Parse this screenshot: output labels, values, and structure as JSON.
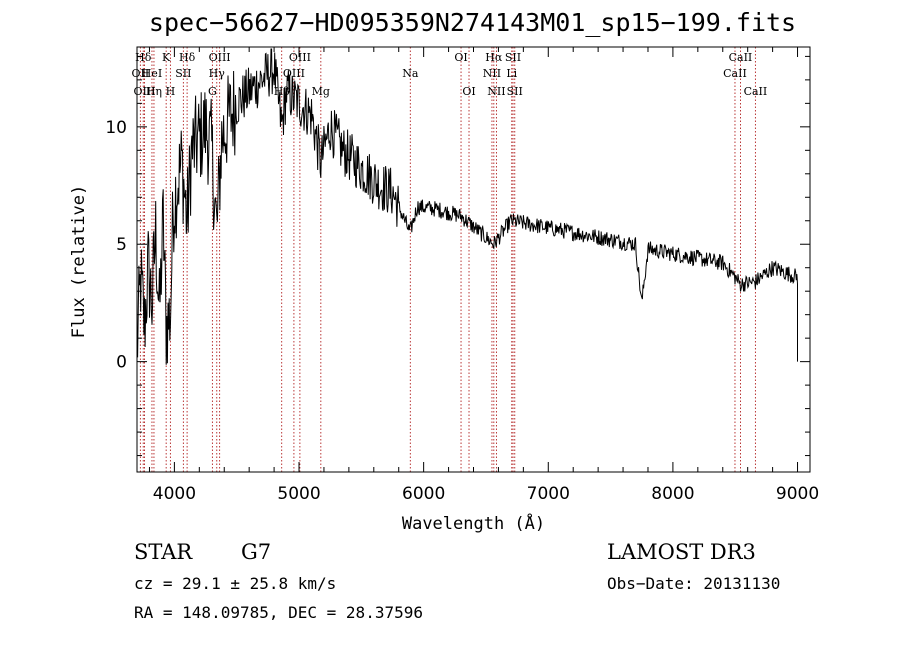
{
  "header": {
    "title": "spec−56627−HD095359N274143M01_sp15−199.fits"
  },
  "info": {
    "object_class": "STAR",
    "subclass": "G7",
    "survey": "LAMOST DR3",
    "redshift_text": "cz = 29.1 ± 25.8 km/s",
    "obs_date_text": "Obs−Date: 20131130",
    "coords_text": "RA = 148.09785, DEC =  28.37596"
  },
  "chart_data": {
    "type": "line",
    "title": "spec−56627−HD095359N274143M01_sp15−199.fits",
    "xlabel": "Wavelength (Å)",
    "ylabel": "Flux (relative)",
    "xlim": [
      3700,
      9100
    ],
    "ylim": [
      -4.7,
      13.4
    ],
    "xticks": [
      4000,
      5000,
      6000,
      7000,
      8000,
      9000
    ],
    "yticks": [
      0,
      5,
      10
    ],
    "x_minor_step": 200,
    "y_minor_step": 1,
    "grid": false,
    "series": [
      {
        "name": "Flux",
        "anchors": [
          [
            3700,
            0.5
          ],
          [
            3730,
            3.5
          ],
          [
            3760,
            1.5
          ],
          [
            3790,
            4.0
          ],
          [
            3820,
            2.5
          ],
          [
            3850,
            5.5
          ],
          [
            3880,
            2.0
          ],
          [
            3910,
            6.0
          ],
          [
            3934,
            1.5
          ],
          [
            3968,
            2.0
          ],
          [
            3990,
            6.5
          ],
          [
            4020,
            7.5
          ],
          [
            4060,
            8.5
          ],
          [
            4101,
            6.0
          ],
          [
            4140,
            9.0
          ],
          [
            4200,
            9.5
          ],
          [
            4250,
            10.0
          ],
          [
            4300,
            9.0
          ],
          [
            4340,
            5.5
          ],
          [
            4380,
            9.5
          ],
          [
            4450,
            10.5
          ],
          [
            4500,
            11.0
          ],
          [
            4600,
            11.5
          ],
          [
            4700,
            12.0
          ],
          [
            4800,
            12.5
          ],
          [
            4861,
            10.0
          ],
          [
            4900,
            11.5
          ],
          [
            5000,
            11.0
          ],
          [
            5100,
            10.5
          ],
          [
            5175,
            8.5
          ],
          [
            5250,
            10.0
          ],
          [
            5350,
            9.0
          ],
          [
            5450,
            8.5
          ],
          [
            5550,
            8.0
          ],
          [
            5650,
            7.5
          ],
          [
            5750,
            7.2
          ],
          [
            5890,
            5.5
          ],
          [
            5950,
            6.6
          ],
          [
            6100,
            6.5
          ],
          [
            6300,
            6.2
          ],
          [
            6563,
            5.0
          ],
          [
            6700,
            6.0
          ],
          [
            6900,
            5.8
          ],
          [
            7100,
            5.6
          ],
          [
            7300,
            5.4
          ],
          [
            7500,
            5.2
          ],
          [
            7700,
            5.0
          ],
          [
            7750,
            2.5
          ],
          [
            7800,
            4.8
          ],
          [
            8000,
            4.6
          ],
          [
            8200,
            4.4
          ],
          [
            8400,
            4.2
          ],
          [
            8498,
            3.6
          ],
          [
            8542,
            3.3
          ],
          [
            8662,
            3.4
          ],
          [
            8800,
            4.0
          ],
          [
            9000,
            3.6
          ],
          [
            9000,
            0.0
          ]
        ]
      }
    ],
    "spectral_lines": [
      {
        "name": "Hδ",
        "wavelength": 3750,
        "row": 1
      },
      {
        "name": "OII",
        "wavelength": 3727,
        "row": 2
      },
      {
        "name": "OIII",
        "wavelength": 3760,
        "row": 3
      },
      {
        "name": "Hη",
        "wavelength": 3836,
        "row": 3
      },
      {
        "name": "HeI",
        "wavelength": 3820,
        "row": 2
      },
      {
        "name": "K",
        "wavelength": 3934,
        "row": 1
      },
      {
        "name": "H",
        "wavelength": 3968,
        "row": 3
      },
      {
        "name": "SII",
        "wavelength": 4072,
        "row": 2
      },
      {
        "name": "Hδ",
        "wavelength": 4102,
        "row": 1
      },
      {
        "name": "OIII",
        "wavelength": 4363,
        "row": 1
      },
      {
        "name": "Hγ",
        "wavelength": 4340,
        "row": 2
      },
      {
        "name": "G",
        "wavelength": 4305,
        "row": 3
      },
      {
        "name": "OIII",
        "wavelength": 5007,
        "row": 1
      },
      {
        "name": "OIII",
        "wavelength": 4959,
        "row": 2
      },
      {
        "name": "Hβ",
        "wavelength": 4861,
        "row": 3
      },
      {
        "name": "Mg",
        "wavelength": 5175,
        "row": 3
      },
      {
        "name": "Na",
        "wavelength": 5893,
        "row": 2
      },
      {
        "name": "OI",
        "wavelength": 6300,
        "row": 1
      },
      {
        "name": "OI",
        "wavelength": 6364,
        "row": 3
      },
      {
        "name": "Hα",
        "wavelength": 6563,
        "row": 1
      },
      {
        "name": "NII",
        "wavelength": 6548,
        "row": 2
      },
      {
        "name": "NII",
        "wavelength": 6584,
        "row": 3
      },
      {
        "name": "SII",
        "wavelength": 6717,
        "row": 1
      },
      {
        "name": "Li",
        "wavelength": 6707,
        "row": 2
      },
      {
        "name": "SII",
        "wavelength": 6731,
        "row": 3
      },
      {
        "name": "CaII",
        "wavelength": 8542,
        "row": 1
      },
      {
        "name": "CaII",
        "wavelength": 8498,
        "row": 2
      },
      {
        "name": "CaII",
        "wavelength": 8662,
        "row": 3
      }
    ]
  },
  "style": {
    "line_color": "#000000",
    "marker_color": "#b22222",
    "background": "#ffffff"
  }
}
